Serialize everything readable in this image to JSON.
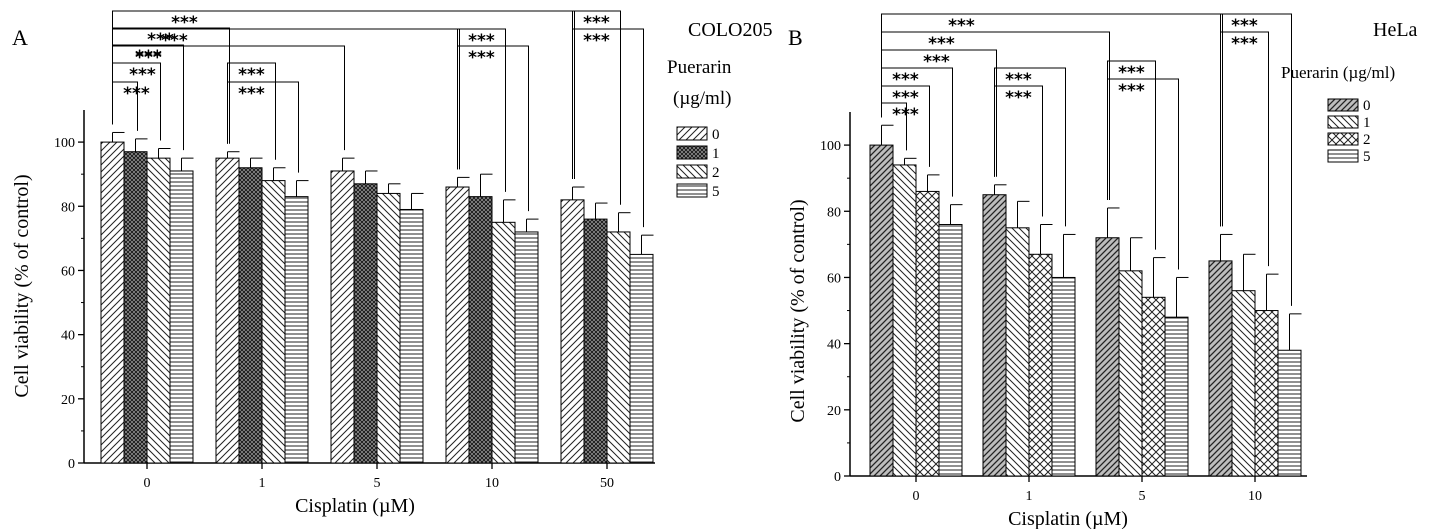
{
  "chart_data": [
    {
      "type": "bar",
      "panel_label": "A",
      "title": "COLO205",
      "legend_title": [
        "Puerarin",
        "(µg/ml)"
      ],
      "xlabel": "Cisplatin (µM)",
      "ylabel": "Cell viability (% of control)",
      "ylim": [
        0,
        110
      ],
      "yticks": [
        "0",
        "20",
        "40",
        "60",
        "80",
        "100"
      ],
      "categories": [
        "0",
        "1",
        "5",
        "10",
        "50"
      ],
      "series": [
        {
          "name": "0",
          "pattern": "diag-up",
          "values": [
            100,
            95,
            91,
            86,
            82
          ],
          "errors": [
            3,
            2,
            4,
            3,
            4
          ]
        },
        {
          "name": "1",
          "pattern": "crosshatch-dense",
          "values": [
            97,
            92,
            87,
            83,
            76
          ],
          "errors": [
            4,
            3,
            4,
            7,
            5
          ]
        },
        {
          "name": "2",
          "pattern": "diag-down",
          "values": [
            95,
            88,
            84,
            75,
            72
          ],
          "errors": [
            3,
            4,
            3,
            7,
            6
          ]
        },
        {
          "name": "5",
          "pattern": "horizontal",
          "values": [
            91,
            83,
            79,
            72,
            65
          ],
          "errors": [
            4,
            5,
            5,
            4,
            6
          ]
        }
      ],
      "significance": "***",
      "legend_position": "right"
    },
    {
      "type": "bar",
      "panel_label": "B",
      "title": "HeLa",
      "legend_title": [
        "Puerarin (µg/ml)"
      ],
      "xlabel": "Cisplatin (µM)",
      "ylabel": "Cell viability (% of control)",
      "ylim": [
        0,
        110
      ],
      "yticks": [
        "0",
        "20",
        "40",
        "60",
        "80",
        "100"
      ],
      "categories": [
        "0",
        "1",
        "5",
        "10"
      ],
      "series": [
        {
          "name": "0",
          "pattern": "diag-up-gray",
          "values": [
            100,
            85,
            72,
            65
          ],
          "errors": [
            6,
            3,
            9,
            8
          ]
        },
        {
          "name": "1",
          "pattern": "diag-down",
          "values": [
            94,
            75,
            62,
            56
          ],
          "errors": [
            2,
            8,
            10,
            11
          ]
        },
        {
          "name": "2",
          "pattern": "crosshatch",
          "values": [
            86,
            67,
            54,
            50
          ],
          "errors": [
            5,
            9,
            12,
            11
          ]
        },
        {
          "name": "5",
          "pattern": "horizontal",
          "values": [
            76,
            60,
            48,
            38
          ],
          "errors": [
            6,
            13,
            12,
            11
          ]
        }
      ],
      "significance": "***",
      "legend_position": "right"
    }
  ]
}
